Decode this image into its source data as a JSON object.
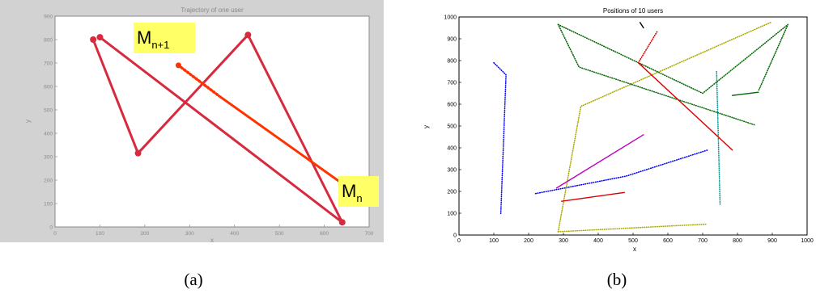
{
  "captions": {
    "a": "(a)",
    "b": "(b)"
  },
  "chart_data": [
    {
      "type": "line",
      "title": "Trajectory of one user",
      "xlabel": "x",
      "ylabel": "y",
      "xlim": [
        0,
        700
      ],
      "ylim": [
        0,
        900
      ],
      "xticks": [
        "0",
        "100",
        "200",
        "300",
        "400",
        "500",
        "600",
        "700"
      ],
      "yticks": [
        "0",
        "100",
        "200",
        "300",
        "400",
        "500",
        "600",
        "700",
        "800",
        "900"
      ],
      "grid": false,
      "series": [
        {
          "style": "solid",
          "color": "#d82a3e",
          "x": [
            85,
            185,
            430,
            640,
            100
          ],
          "y": [
            800,
            315,
            820,
            20,
            810
          ]
        },
        {
          "style": "solid",
          "color": "#ff3300",
          "x": [
            365,
            655
          ],
          "y": [
            560,
            165
          ]
        },
        {
          "style": "dotted",
          "color": "#ff3300",
          "x": [
            275,
            365
          ],
          "y": [
            690,
            560
          ]
        }
      ],
      "annotations": [
        {
          "label_main": "M",
          "label_sub": "n+1",
          "x": 275,
          "y": 690,
          "bg": "#ffff66"
        },
        {
          "label_main": "M",
          "label_sub": "n",
          "x": 655,
          "y": 165,
          "bg": "#ffff66"
        }
      ]
    },
    {
      "type": "line",
      "title": "Positions of 10 users",
      "xlabel": "x",
      "ylabel": "y",
      "xlim": [
        0,
        1000
      ],
      "ylim": [
        0,
        1000
      ],
      "xticks": [
        "0",
        "100",
        "200",
        "300",
        "400",
        "500",
        "600",
        "700",
        "800",
        "900",
        "1000"
      ],
      "yticks": [
        "0",
        "100",
        "200",
        "300",
        "400",
        "500",
        "600",
        "700",
        "800",
        "900",
        "1000"
      ],
      "grid": false,
      "series": [
        {
          "color": "#0000ff",
          "style": "dotted",
          "x": [
            100,
            135,
            120
          ],
          "y": [
            790,
            735,
            95
          ]
        },
        {
          "color": "#0000ff",
          "style": "dotted",
          "x": [
            220,
            480,
            715
          ],
          "y": [
            190,
            270,
            390
          ]
        },
        {
          "color": "#009999",
          "style": "dotted",
          "x": [
            740,
            750
          ],
          "y": [
            750,
            140
          ]
        },
        {
          "color": "#aaaa00",
          "style": "dotted",
          "x": [
            285,
            710
          ],
          "y": [
            15,
            50
          ]
        },
        {
          "color": "#aaaa00",
          "style": "dotted",
          "x": [
            285,
            350,
            895
          ],
          "y": [
            15,
            590,
            975
          ]
        },
        {
          "color": "#006600",
          "style": "dotted",
          "x": [
            285,
            345,
            850
          ],
          "y": [
            965,
            770,
            505
          ]
        },
        {
          "color": "#006600",
          "style": "dotted",
          "x": [
            285,
            700,
            945,
            860
          ],
          "y": [
            965,
            650,
            965,
            660
          ]
        },
        {
          "color": "#006600",
          "style": "solid",
          "x": [
            785,
            860
          ],
          "y": [
            640,
            655
          ]
        },
        {
          "color": "#dd0000",
          "style": "solid",
          "x": [
            295,
            475
          ],
          "y": [
            155,
            195
          ]
        },
        {
          "color": "#dd0000",
          "style": "solid",
          "x": [
            515,
            785
          ],
          "y": [
            790,
            390
          ]
        },
        {
          "color": "#dd0000",
          "style": "dotted",
          "x": [
            515,
            570
          ],
          "y": [
            790,
            935
          ]
        },
        {
          "color": "#bb00bb",
          "style": "solid",
          "x": [
            280,
            530
          ],
          "y": [
            215,
            460
          ]
        },
        {
          "color": "#000000",
          "style": "solid",
          "x": [
            520,
            530
          ],
          "y": [
            975,
            950
          ]
        }
      ]
    }
  ]
}
